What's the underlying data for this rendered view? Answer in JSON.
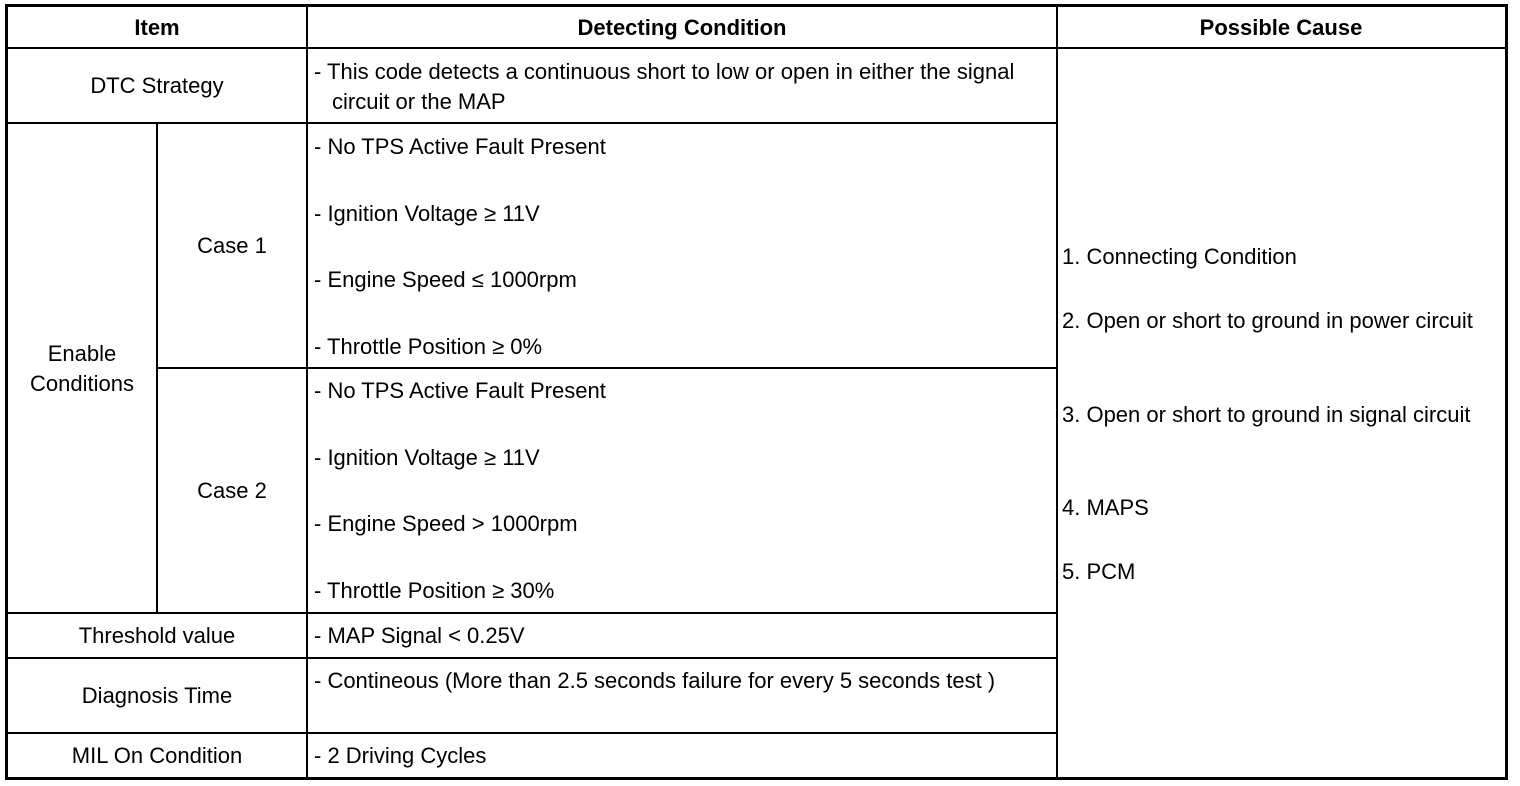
{
  "headers": {
    "item": "Item",
    "detecting": "Detecting Condition",
    "cause": "Possible Cause"
  },
  "rows": {
    "dtc": {
      "item": "DTC Strategy",
      "condition": "- This code detects a continuous short to low or open in either the signal circuit or the MAP"
    },
    "enable": {
      "item": "Enable Conditions",
      "case1": {
        "label": "Case 1",
        "conditions": [
          "- No TPS Active Fault Present",
          "- Ignition Voltage ≥ 11V",
          "- Engine Speed ≤ 1000rpm",
          "- Throttle Position ≥ 0%"
        ]
      },
      "case2": {
        "label": "Case 2",
        "conditions": [
          "- No TPS Active Fault Present",
          "- Ignition Voltage ≥ 11V",
          "- Engine Speed > 1000rpm",
          "- Throttle Position ≥ 30%"
        ]
      }
    },
    "threshold": {
      "item": "Threshold value",
      "condition": "- MAP Signal < 0.25V"
    },
    "diagnosis": {
      "item": "Diagnosis Time",
      "condition": "- Contineous (More than 2.5 seconds failure for every 5 seconds test )"
    },
    "mil": {
      "item": "MIL On Condition",
      "condition": "- 2 Driving Cycles"
    }
  },
  "causes": [
    "1. Connecting Condition",
    "2. Open or short to ground in power circuit",
    "3. Open or short to ground in signal circuit",
    "4. MAPS",
    "5. PCM"
  ]
}
